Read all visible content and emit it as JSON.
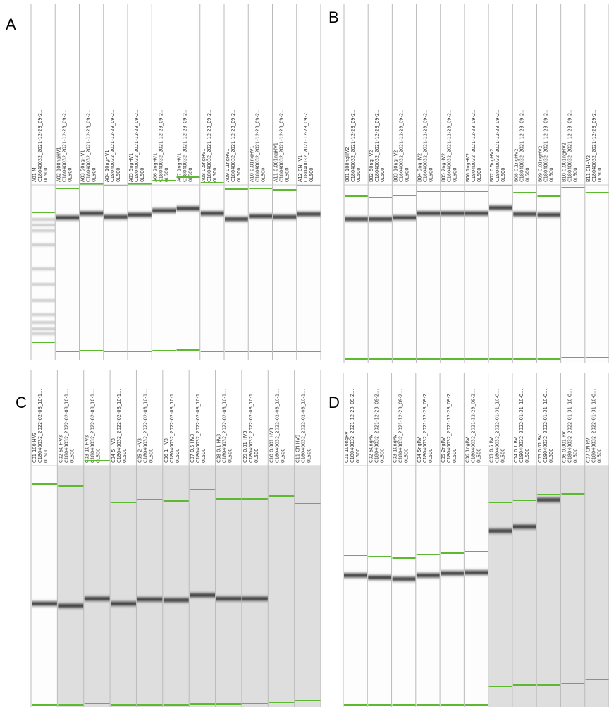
{
  "panels": [
    {
      "label": "A",
      "lanes": [
        {
          "name": "A01 M",
          "run": "C18040032_2021-12-23_09-2...",
          "kit": "0L500"
        },
        {
          "name": "A02 100ngHV1",
          "run": "C18040032_2021-12-23_09-2...",
          "kit": "0L500"
        },
        {
          "name": "A03 50ngHV1",
          "run": "C18040032_2021-12-23_09-2...",
          "kit": "0L500"
        },
        {
          "name": "A04 10ngHV1",
          "run": "C18040032_2021-12-23_09-2...",
          "kit": "0L500"
        },
        {
          "name": "A05 5ngHV1",
          "run": "C18040032_2021-12-23_09-2...",
          "kit": "0L500"
        },
        {
          "name": "A06 2ngHV1",
          "run": "C18040032_2021-12-23_09-2...",
          "kit": "0L500"
        },
        {
          "name": "A07 1ngHV1",
          "run": "C18040032_2021-12-23_09-2...",
          "kit": "0L500"
        },
        {
          "name": "A08 0.5ngHV1",
          "run": "C18040032_2021-12-23_09-2...",
          "kit": "0L500"
        },
        {
          "name": "A09 0.1ngHV1",
          "run": "C18040032_2021-12-23_09-2...",
          "kit": "0L500"
        },
        {
          "name": "A10 0.01ngHV1",
          "run": "C18040032_2021-12-23_09-2...",
          "kit": "0L500"
        },
        {
          "name": "A11 0.001ngHV1",
          "run": "C18040032_2021-12-23_09-2...",
          "kit": "0L500"
        },
        {
          "name": "A12 CNHV1",
          "run": "C18040032_2021-12-23_09-2...",
          "kit": "0L500"
        }
      ]
    },
    {
      "label": "B",
      "lanes": [
        {
          "name": "B01 100ngHV2",
          "run": "C18040032_2021-12-23_09-2...",
          "kit": "0L500"
        },
        {
          "name": "B02 50ngHV2",
          "run": "C18040032_2021-12-23_09-2...",
          "kit": "0L500"
        },
        {
          "name": "B03 10ngHV2",
          "run": "C18040032_2021-12-23_09-2...",
          "kit": "0L500"
        },
        {
          "name": "B04 5ngHV2",
          "run": "C18040032_2021-12-23_09-2...",
          "kit": "0L500"
        },
        {
          "name": "B05 2ngHV2",
          "run": "C18040032_2021-12-23_09-2...",
          "kit": "0L500"
        },
        {
          "name": "B06 1ngHV2",
          "run": "C18040032_2021-12-23_09-2...",
          "kit": "0L500"
        },
        {
          "name": "B07 0.5ngHV2",
          "run": "C18040032_2021-12-23_09-2...",
          "kit": "0L500"
        },
        {
          "name": "B08 0.1ngHV2",
          "run": "C18040032_2021-12-23_09-2...",
          "kit": "0L500"
        },
        {
          "name": "B09 0.01ngHV2",
          "run": "C18040032_2021-12-23_09-2...",
          "kit": "0L500"
        },
        {
          "name": "B10 0.001ngHV2",
          "run": "C18040032_2021-12-23_09-2...",
          "kit": "0L500"
        },
        {
          "name": "B11 CNHV2",
          "run": "C18040032_2021-12-23_09-2...",
          "kit": "0L500"
        }
      ]
    },
    {
      "label": "C",
      "lanes": [
        {
          "name": "C01 100 HV3",
          "run": "C18040032_2022-02-08_10-1...",
          "kit": "0L500"
        },
        {
          "name": "C02 50 HV3",
          "run": "C18040032_2022-02-08_10-1...",
          "kit": "0L500"
        },
        {
          "name": "C03 10 HV3",
          "run": "C18040032_2022-02-08_10-1...",
          "kit": "0L500"
        },
        {
          "name": "C04 5 HV3",
          "run": "C18040032_2022-02-08_10-1...",
          "kit": "0L500"
        },
        {
          "name": "C05 2 HV3",
          "run": "C18040032_2022-02-08_10-1...",
          "kit": "0L500"
        },
        {
          "name": "C06 1 HV3",
          "run": "C18040032_2022-02-08_10-1...",
          "kit": "0L500"
        },
        {
          "name": "C07 0.5 HV3",
          "run": "C18040032_2022-02-08_10-1...",
          "kit": "0L500"
        },
        {
          "name": "C08 0.1 HV3",
          "run": "C18040032_2022-02-08_10-1...",
          "kit": "0L500"
        },
        {
          "name": "C09 0.01 HV3",
          "run": "C18040032_2022-02-08_10-1...",
          "kit": "0L500"
        },
        {
          "name": "C10 0.001 HV3",
          "run": "C18040032_2022-02-08_10-1...",
          "kit": "0L500"
        },
        {
          "name": "C11 CN HV3",
          "run": "C18040032_2022-02-08_10-1...",
          "kit": "0L500"
        }
      ]
    },
    {
      "label": "D",
      "lanes": [
        {
          "name": "C01 100ngRV",
          "run": "C18040032_2021-12-23_09-2...",
          "kit": "0L500"
        },
        {
          "name": "C02 50ngRV",
          "run": "C18040032_2021-12-23_09-2...",
          "kit": "0L500"
        },
        {
          "name": "C03 10ngRV",
          "run": "C18040032_2021-12-23_09-2...",
          "kit": "0L500"
        },
        {
          "name": "C04 5ngRV",
          "run": "C18040032_2021-12-23_09-2...",
          "kit": "0L500"
        },
        {
          "name": "C05 2ngRV",
          "run": "C18040032_2021-12-23_09-2...",
          "kit": "0L500"
        },
        {
          "name": "C06 1ngRV",
          "run": "C18040032_2021-12-23_09-2...",
          "kit": "0L500"
        },
        {
          "name": "C03 0.5 RV",
          "run": "C18040032_2022-01-31_10-0...",
          "kit": "0L500"
        },
        {
          "name": "C04 0.1 RV",
          "run": "C18040032_2022-01-31_10-0...",
          "kit": "0L500"
        },
        {
          "name": "C05 0.01 RV",
          "run": "C18040032_2022-01-31_10-0...",
          "kit": "0L500"
        },
        {
          "name": "C06 0.001 RV",
          "run": "C18040032_2022-01-31_10-0...",
          "kit": "0L500"
        },
        {
          "name": "C07 CN RV",
          "run": "C18040032_2022-01-31_10-0...",
          "kit": "0L500"
        }
      ]
    }
  ]
}
